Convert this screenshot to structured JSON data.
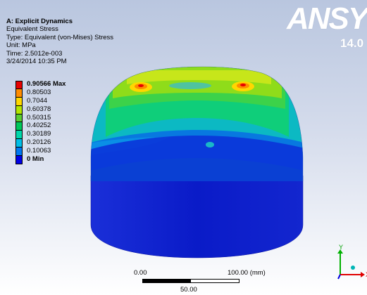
{
  "header": {
    "title": "A: Explicit Dynamics",
    "line2": "Equivalent Stress",
    "line3": "Type: Equivalent (von-Mises) Stress",
    "line4": "Unit: MPa",
    "line5": "Time: 2.5012e-003",
    "line6": "3/24/2014 10:35 PM"
  },
  "branding": {
    "logo": "ANSYS",
    "version": "14.0"
  },
  "legend": [
    {
      "label": "0.90566 Max",
      "color": "#e60000",
      "bold": true
    },
    {
      "label": "0.80503",
      "color": "#ff8c00",
      "bold": false
    },
    {
      "label": "0.7044",
      "color": "#ffd700",
      "bold": false
    },
    {
      "label": "0.60378",
      "color": "#b4e600",
      "bold": false
    },
    {
      "label": "0.50315",
      "color": "#5acd32",
      "bold": false
    },
    {
      "label": "0.40252",
      "color": "#00c85a",
      "bold": false
    },
    {
      "label": "0.30189",
      "color": "#00d7aa",
      "bold": false
    },
    {
      "label": "0.20126",
      "color": "#00bee6",
      "bold": false
    },
    {
      "label": "0.10063",
      "color": "#0078f0",
      "bold": false
    },
    {
      "label": "0 Min",
      "color": "#0000e6",
      "bold": true
    }
  ],
  "scale": {
    "left": "0.00",
    "right": "100.00 (mm)",
    "mid": "50.00"
  },
  "triad": {
    "y_label": "Y",
    "x_label": "X"
  },
  "colors": {
    "bg_top": "#b9c6df",
    "bg_bottom": "#ffffff",
    "model_base": "#0a14d2"
  }
}
